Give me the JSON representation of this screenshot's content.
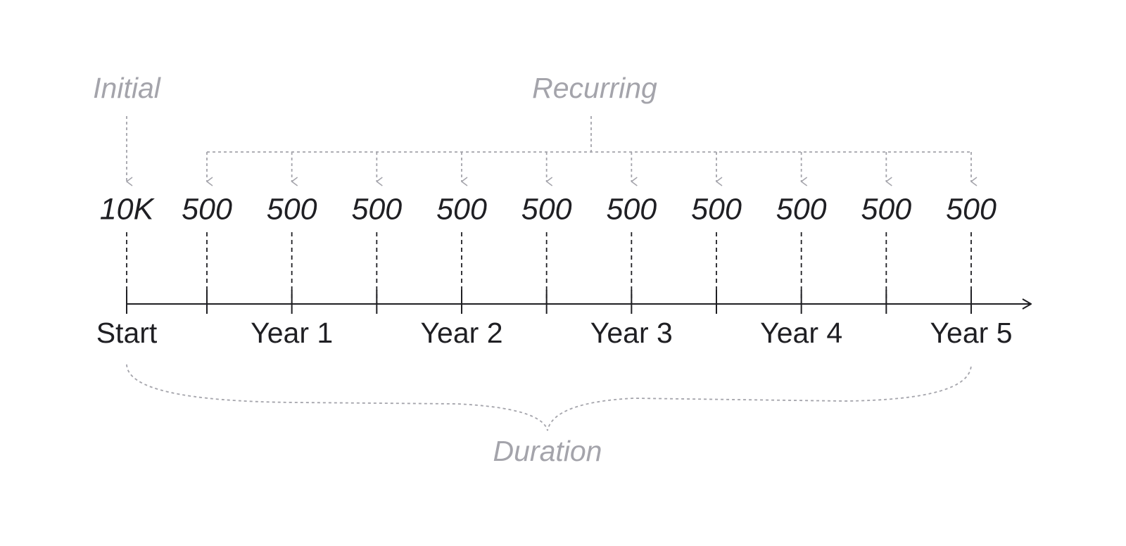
{
  "labels": {
    "initial": "Initial",
    "recurring": "Recurring",
    "duration": "Duration"
  },
  "amounts": [
    "10K",
    "500",
    "500",
    "500",
    "500",
    "500",
    "500",
    "500",
    "500",
    "500",
    "500"
  ],
  "timeline": [
    "Start",
    "Year 1",
    "Year 2",
    "Year 3",
    "Year 4",
    "Year 5"
  ]
}
